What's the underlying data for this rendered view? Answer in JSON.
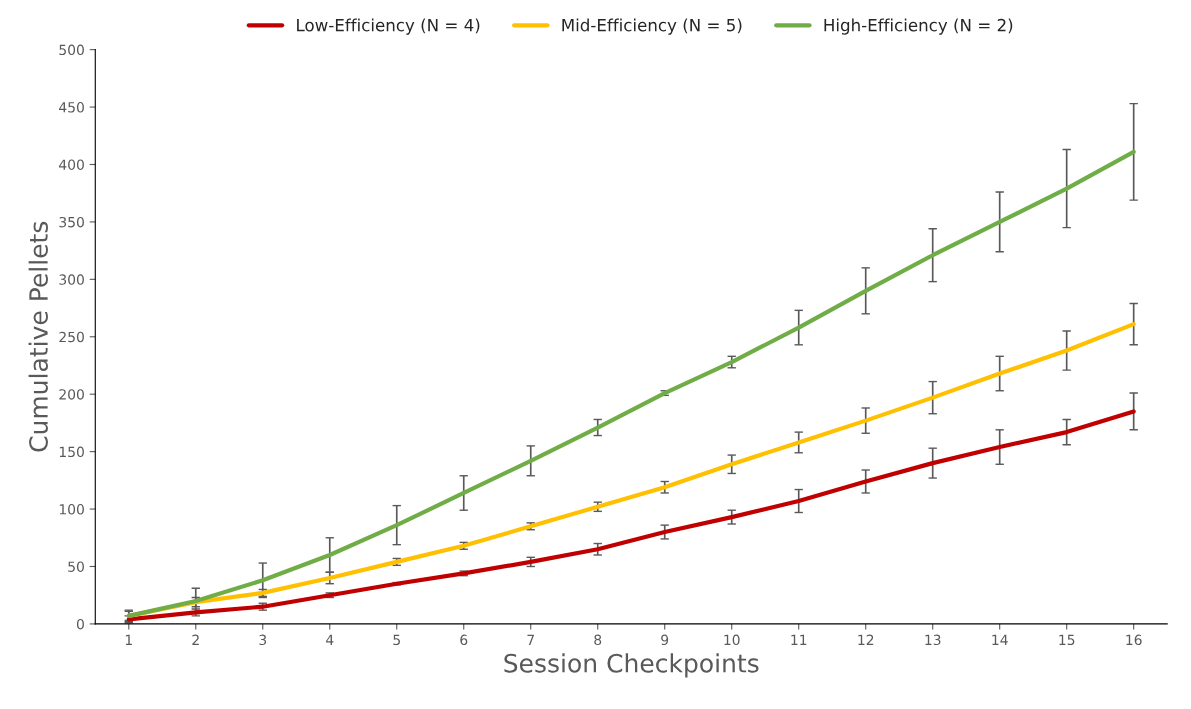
{
  "chart_data": {
    "type": "line",
    "xlabel": "Session Checkpoints",
    "ylabel": "Cumulative Pellets",
    "categories": [
      "1",
      "2",
      "3",
      "4",
      "5",
      "6",
      "7",
      "8",
      "9",
      "10",
      "11",
      "12",
      "13",
      "14",
      "15",
      "16"
    ],
    "series": [
      {
        "name": "Low-Efficiency (N = 4)",
        "color": "#c00000",
        "values": [
          4,
          10,
          15,
          25,
          35,
          44,
          54,
          65,
          80,
          93,
          107,
          124,
          140,
          154,
          167,
          185
        ],
        "errors": [
          3,
          3,
          3,
          2,
          1,
          2,
          4,
          5,
          6,
          6,
          10,
          10,
          13,
          15,
          11,
          16
        ]
      },
      {
        "name": "Mid-Efficiency (N = 5)",
        "color": "#ffc000",
        "values": [
          7,
          19,
          27,
          40,
          54,
          68,
          85,
          102,
          119,
          139,
          158,
          177,
          197,
          218,
          238,
          261
        ],
        "errors": [
          4,
          4,
          3,
          5,
          3,
          3,
          3,
          4,
          5,
          8,
          9,
          11,
          14,
          15,
          17,
          18
        ]
      },
      {
        "name": "High-Efficiency (N = 2)",
        "color": "#70ad47",
        "values": [
          7,
          20,
          38,
          60,
          86,
          114,
          142,
          171,
          201,
          228,
          258,
          290,
          321,
          350,
          379,
          411
        ],
        "errors": [
          5,
          11,
          15,
          15,
          17,
          15,
          13,
          7,
          2,
          5,
          15,
          20,
          23,
          26,
          34,
          42
        ]
      }
    ],
    "ylim": [
      0,
      500
    ],
    "yticks": [
      0,
      50,
      100,
      150,
      200,
      250,
      300,
      350,
      400,
      450,
      500
    ],
    "grid": false,
    "legend": "top",
    "marker": "none",
    "line_style": "solid"
  }
}
